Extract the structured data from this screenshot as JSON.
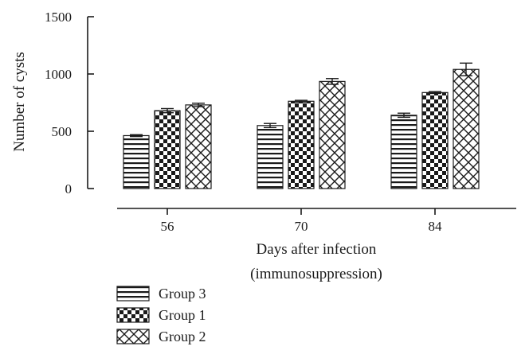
{
  "chart_data": {
    "type": "bar",
    "categories": [
      "56",
      "70",
      "84"
    ],
    "xlabel_line1": "Days after infection",
    "xlabel_line2": "(immunosuppression)",
    "ylabel": "Number of cysts",
    "ylim": [
      0,
      1500
    ],
    "yticks": [
      "0",
      "500",
      "1000",
      "1500"
    ],
    "grid": false,
    "legend_placement": "bottom-left",
    "series": [
      {
        "name": "Group 3",
        "pattern": "horizontal-lines",
        "values": [
          462,
          550,
          640
        ],
        "errors": [
          8,
          18,
          18
        ]
      },
      {
        "name": "Group 1",
        "pattern": "checkerboard",
        "values": [
          680,
          762,
          838
        ],
        "errors": [
          18,
          8,
          8
        ]
      },
      {
        "name": "Group 2",
        "pattern": "crosshatch",
        "values": [
          730,
          935,
          1040
        ],
        "errors": [
          15,
          25,
          55
        ]
      }
    ],
    "colors": {
      "ink": "#1a1a1a",
      "background": "#ffffff"
    }
  }
}
